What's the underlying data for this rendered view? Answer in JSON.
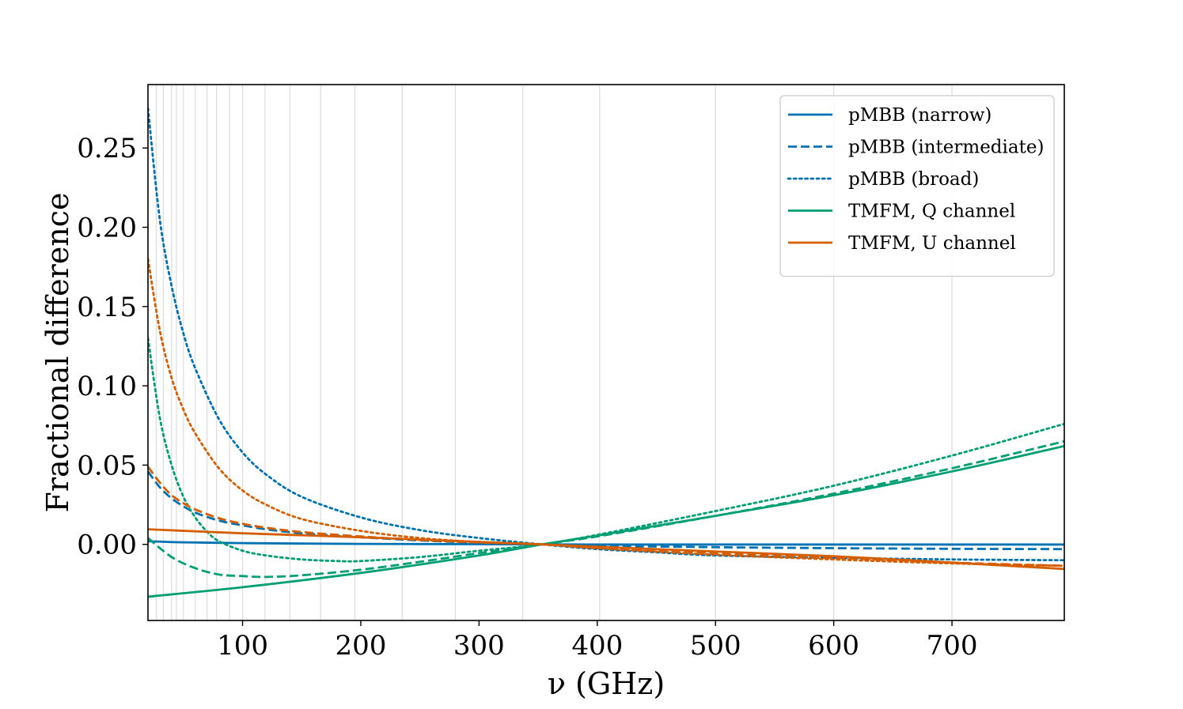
{
  "chart_data": {
    "type": "line",
    "xlabel": "ν (GHz)",
    "ylabel": "Fractional difference",
    "xlim": [
      20,
      795
    ],
    "ylim": [
      -0.048,
      0.29
    ],
    "xticks": [
      100,
      200,
      300,
      400,
      500,
      600,
      700
    ],
    "yticks": [
      0.0,
      0.05,
      0.1,
      0.15,
      0.2,
      0.25
    ],
    "ytick_labels": [
      "0.00",
      "0.05",
      "0.10",
      "0.15",
      "0.20",
      "0.25"
    ],
    "vertical_gridlines": [
      20,
      27,
      33,
      40,
      44,
      50,
      60,
      70,
      78,
      89,
      100,
      119,
      140,
      166,
      195,
      235,
      280,
      337,
      402,
      500,
      600,
      700
    ],
    "grid": "vertical only",
    "legend_position": "upper right",
    "colors": {
      "blue": "#0072b2",
      "green": "#009e73",
      "orange": "#d55e00"
    },
    "series": [
      {
        "name": "pMBB (narrow)",
        "color": "#0072b2",
        "style": "solid",
        "x": [
          20,
          50,
          100,
          150,
          200,
          250,
          300,
          353,
          400,
          500,
          600,
          700,
          795
        ],
        "y": [
          0.002,
          0.0013,
          0.0008,
          0.0005,
          0.0003,
          0.0002,
          0.0001,
          0.0,
          -0.0001,
          -0.0001,
          -0.0001,
          -0.0001,
          -0.0001
        ]
      },
      {
        "name": "pMBB (intermediate)",
        "color": "#0072b2",
        "style": "dashed",
        "x": [
          20,
          30,
          40,
          50,
          60,
          80,
          100,
          120,
          150,
          200,
          250,
          300,
          353,
          400,
          500,
          600,
          700,
          795
        ],
        "y": [
          0.046,
          0.036,
          0.029,
          0.024,
          0.02,
          0.015,
          0.012,
          0.0095,
          0.007,
          0.0045,
          0.0025,
          0.001,
          0.0,
          -0.0008,
          -0.0018,
          -0.0024,
          -0.0028,
          -0.003
        ]
      },
      {
        "name": "pMBB (broad)",
        "color": "#0072b2",
        "style": "dotted",
        "x": [
          20,
          30,
          40,
          50,
          60,
          80,
          100,
          120,
          150,
          200,
          250,
          300,
          353,
          400,
          450,
          500,
          600,
          700,
          795
        ],
        "y": [
          0.275,
          0.205,
          0.163,
          0.133,
          0.111,
          0.079,
          0.058,
          0.044,
          0.03,
          0.017,
          0.009,
          0.004,
          0.0,
          -0.003,
          -0.005,
          -0.007,
          -0.0085,
          -0.0095,
          -0.01
        ]
      },
      {
        "name": "TMFM, Q channel",
        "color": "#009e73",
        "style": "solid",
        "x": [
          20,
          100,
          200,
          300,
          353,
          400,
          500,
          600,
          700,
          795
        ],
        "y": [
          -0.033,
          -0.027,
          -0.018,
          -0.007,
          0.0,
          0.0055,
          0.018,
          0.031,
          0.046,
          0.062
        ]
      },
      {
        "name": "",
        "color": "#009e73",
        "style": "dashed",
        "x": [
          20,
          40,
          60,
          80,
          100,
          120,
          150,
          200,
          250,
          300,
          353,
          400,
          500,
          600,
          700,
          795
        ],
        "y": [
          0.004,
          -0.008,
          -0.015,
          -0.019,
          -0.02,
          -0.0205,
          -0.0195,
          -0.016,
          -0.011,
          -0.0055,
          0.0,
          0.005,
          0.018,
          0.032,
          0.048,
          0.065
        ]
      },
      {
        "name": "",
        "color": "#009e73",
        "style": "dotted",
        "x": [
          20,
          30,
          40,
          50,
          60,
          70,
          80,
          100,
          120,
          150,
          180,
          200,
          250,
          300,
          353,
          400,
          500,
          600,
          700,
          795
        ],
        "y": [
          0.13,
          0.08,
          0.05,
          0.03,
          0.017,
          0.008,
          0.002,
          -0.004,
          -0.007,
          -0.0095,
          -0.0105,
          -0.0105,
          -0.008,
          -0.004,
          0.0,
          0.006,
          0.021,
          0.037,
          0.056,
          0.076
        ]
      },
      {
        "name": "TMFM, U channel",
        "color": "#d55e00",
        "style": "solid",
        "x": [
          20,
          100,
          200,
          300,
          353,
          400,
          500,
          600,
          700,
          795
        ],
        "y": [
          0.0095,
          0.007,
          0.0045,
          0.0015,
          0.0,
          -0.0015,
          -0.0045,
          -0.0075,
          -0.0115,
          -0.0155
        ]
      },
      {
        "name": "",
        "color": "#d55e00",
        "style": "dashed",
        "x": [
          20,
          30,
          40,
          50,
          60,
          80,
          100,
          120,
          150,
          200,
          250,
          300,
          353,
          400,
          500,
          600,
          700,
          795
        ],
        "y": [
          0.049,
          0.039,
          0.031,
          0.026,
          0.022,
          0.0165,
          0.013,
          0.0105,
          0.0078,
          0.005,
          0.0028,
          0.0012,
          0.0,
          -0.002,
          -0.0055,
          -0.0085,
          -0.0115,
          -0.0135
        ]
      },
      {
        "name": "",
        "color": "#d55e00",
        "style": "dotted",
        "x": [
          20,
          30,
          40,
          50,
          60,
          80,
          100,
          120,
          150,
          200,
          250,
          300,
          353,
          400,
          500,
          600,
          700,
          795
        ],
        "y": [
          0.18,
          0.135,
          0.105,
          0.085,
          0.07,
          0.048,
          0.034,
          0.025,
          0.016,
          0.0085,
          0.004,
          0.0015,
          0.0,
          -0.0025,
          -0.0065,
          -0.0095,
          -0.012,
          -0.0135
        ]
      }
    ]
  }
}
